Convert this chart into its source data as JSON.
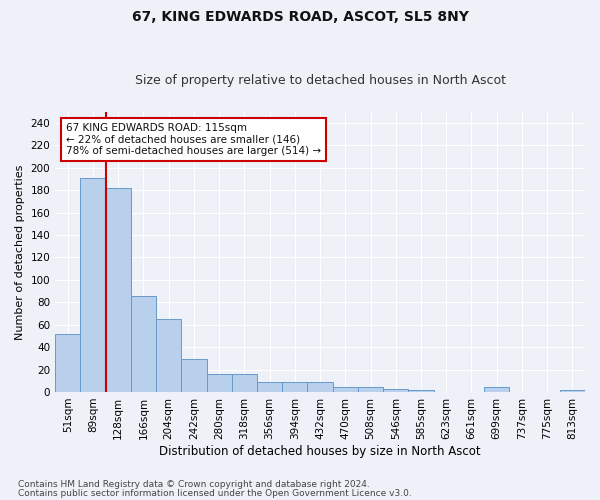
{
  "title1": "67, KING EDWARDS ROAD, ASCOT, SL5 8NY",
  "title2": "Size of property relative to detached houses in North Ascot",
  "xlabel": "Distribution of detached houses by size in North Ascot",
  "ylabel": "Number of detached properties",
  "categories": [
    "51sqm",
    "89sqm",
    "128sqm",
    "166sqm",
    "204sqm",
    "242sqm",
    "280sqm",
    "318sqm",
    "356sqm",
    "394sqm",
    "432sqm",
    "470sqm",
    "508sqm",
    "546sqm",
    "585sqm",
    "623sqm",
    "661sqm",
    "699sqm",
    "737sqm",
    "775sqm",
    "813sqm"
  ],
  "values": [
    52,
    191,
    182,
    86,
    65,
    29,
    16,
    16,
    9,
    9,
    9,
    4,
    4,
    3,
    2,
    0,
    0,
    4,
    0,
    0,
    2
  ],
  "bar_color": "#b8d0eb",
  "bar_edge_color": "#6699cc",
  "vline_x": 1.5,
  "vline_color": "#cc0000",
  "annotation_line1": "67 KING EDWARDS ROAD: 115sqm",
  "annotation_line2": "← 22% of detached houses are smaller (146)",
  "annotation_line3": "78% of semi-detached houses are larger (514) →",
  "annotation_box_color": "#ffffff",
  "annotation_box_edge_color": "#cc0000",
  "ylim": [
    0,
    250
  ],
  "yticks": [
    0,
    20,
    40,
    60,
    80,
    100,
    120,
    140,
    160,
    180,
    200,
    220,
    240
  ],
  "footer1": "Contains HM Land Registry data © Crown copyright and database right 2024.",
  "footer2": "Contains public sector information licensed under the Open Government Licence v3.0.",
  "background_color": "#eef2f8",
  "grid_color": "#ffffff",
  "title1_fontsize": 10,
  "title2_fontsize": 9,
  "xlabel_fontsize": 8.5,
  "ylabel_fontsize": 8,
  "tick_fontsize": 7.5,
  "annotation_fontsize": 7.5,
  "footer_fontsize": 6.5
}
